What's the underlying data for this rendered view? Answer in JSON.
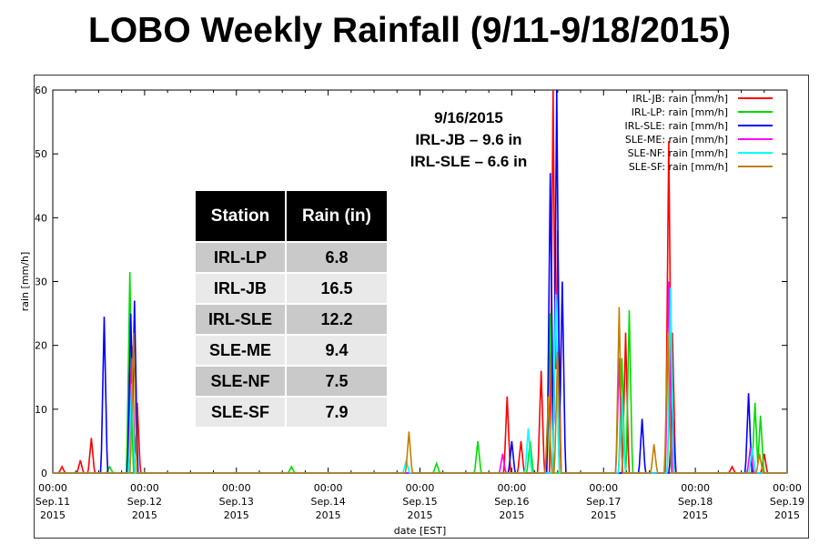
{
  "title": "LOBO Weekly Rainfall (9/11-9/18/2015)",
  "annotation": {
    "date": "9/16/2015",
    "line1": "IRL-JB – 9.6 in",
    "line2": "IRL-SLE –  6.6 in"
  },
  "table": {
    "headers": [
      "Station",
      "Rain (in)"
    ],
    "rows": [
      [
        "IRL-LP",
        "6.8"
      ],
      [
        "IRL-JB",
        "16.5"
      ],
      [
        "IRL-SLE",
        "12.2"
      ],
      [
        "SLE-ME",
        "9.4"
      ],
      [
        "SLE-NF",
        "7.5"
      ],
      [
        "SLE-SF",
        "7.9"
      ]
    ]
  },
  "chart_data": {
    "type": "line",
    "xlabel": "date [EST]",
    "ylabel": "rain [mm/h]",
    "ylim": [
      0,
      60
    ],
    "xlim_days": [
      0,
      8
    ],
    "yticks": [
      "0",
      "10",
      "20",
      "30",
      "40",
      "50",
      "60"
    ],
    "xticks": [
      [
        "00:00",
        "Sep.11",
        "2015"
      ],
      [
        "00:00",
        "Sep.12",
        "2015"
      ],
      [
        "00:00",
        "Sep.13",
        "2015"
      ],
      [
        "00:00",
        "Sep.14",
        "2015"
      ],
      [
        "00:00",
        "Sep.15",
        "2015"
      ],
      [
        "00:00",
        "Sep.16",
        "2015"
      ],
      [
        "00:00",
        "Sep.17",
        "2015"
      ],
      [
        "00:00",
        "Sep.18",
        "2015"
      ],
      [
        "00:00",
        "Sep.19",
        "2015"
      ]
    ],
    "legend_position": "top-right",
    "series": [
      {
        "name": "IRL-JB: rain [mm/h]",
        "color": "#ff0000",
        "peaks": [
          [
            0.1,
            1
          ],
          [
            0.3,
            2
          ],
          [
            0.42,
            5.5
          ],
          [
            0.86,
            20
          ],
          [
            0.92,
            11
          ],
          [
            4.95,
            12
          ],
          [
            5.1,
            5
          ],
          [
            5.32,
            16
          ],
          [
            5.45,
            60
          ],
          [
            5.5,
            38
          ],
          [
            6.24,
            22
          ],
          [
            6.71,
            52
          ],
          [
            6.75,
            22
          ],
          [
            7.4,
            1
          ],
          [
            7.75,
            3
          ]
        ]
      },
      {
        "name": "IRL-LP: rain [mm/h]",
        "color": "#00dd00",
        "peaks": [
          [
            0.62,
            1
          ],
          [
            0.84,
            31.5
          ],
          [
            2.6,
            1
          ],
          [
            4.18,
            1.5
          ],
          [
            4.63,
            5
          ],
          [
            5.42,
            25
          ],
          [
            5.2,
            5
          ],
          [
            6.2,
            18
          ],
          [
            6.28,
            25.5
          ],
          [
            6.73,
            22
          ],
          [
            7.65,
            11
          ],
          [
            7.71,
            9
          ]
        ]
      },
      {
        "name": "IRL-SLE: rain [mm/h]",
        "color": "#0000ff",
        "peaks": [
          [
            0.56,
            24.5
          ],
          [
            0.85,
            25
          ],
          [
            0.89,
            27
          ],
          [
            5.0,
            5
          ],
          [
            5.42,
            47
          ],
          [
            5.49,
            60
          ],
          [
            5.55,
            30
          ],
          [
            6.42,
            8.5
          ],
          [
            6.75,
            10
          ],
          [
            7.58,
            12.5
          ]
        ]
      },
      {
        "name": "SLE-ME: rain [mm/h]",
        "color": "#ff00ff",
        "peaks": [
          [
            0.86,
            18
          ],
          [
            4.9,
            3
          ],
          [
            5.48,
            28.5
          ],
          [
            6.17,
            18
          ],
          [
            6.71,
            30
          ],
          [
            7.6,
            4
          ]
        ]
      },
      {
        "name": "SLE-NF: rain [mm/h]",
        "color": "#00ffff",
        "peaks": [
          [
            0.86,
            14
          ],
          [
            3.85,
            2
          ],
          [
            5.18,
            7
          ],
          [
            5.48,
            28
          ],
          [
            6.2,
            12
          ],
          [
            6.73,
            29
          ],
          [
            7.62,
            4
          ]
        ]
      },
      {
        "name": "SLE-SF: rain [mm/h]",
        "color": "#c08000",
        "peaks": [
          [
            0.88,
            22
          ],
          [
            3.88,
            6.5
          ],
          [
            5.5,
            19
          ],
          [
            5.4,
            12
          ],
          [
            6.17,
            26
          ],
          [
            6.55,
            4.5
          ],
          [
            6.7,
            22
          ],
          [
            7.7,
            3
          ]
        ]
      }
    ]
  }
}
